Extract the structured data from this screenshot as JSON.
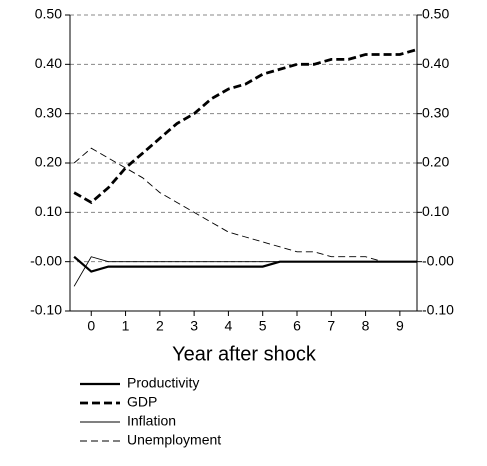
{
  "chart_data": {
    "type": "line",
    "xlabel": "Year after shock",
    "x": [
      -0.5,
      0,
      0.5,
      1,
      1.5,
      2,
      2.5,
      3,
      3.5,
      4,
      4.5,
      5,
      5.5,
      6,
      6.5,
      7,
      7.5,
      8,
      8.5,
      9,
      9.5
    ],
    "series": [
      {
        "name": "Productivity",
        "color": "#000000",
        "values": [
          0.01,
          -0.02,
          -0.01,
          -0.01,
          -0.01,
          -0.01,
          -0.01,
          -0.01,
          -0.01,
          -0.01,
          -0.01,
          -0.01,
          0.0,
          0.0,
          0.0,
          0.0,
          0.0,
          0.0,
          0.0,
          0.0,
          0.0
        ]
      },
      {
        "name": "GDP",
        "color": "#000000",
        "values": [
          0.14,
          0.12,
          0.15,
          0.19,
          0.22,
          0.25,
          0.28,
          0.3,
          0.33,
          0.35,
          0.36,
          0.38,
          0.39,
          0.4,
          0.4,
          0.41,
          0.41,
          0.42,
          0.42,
          0.42,
          0.43
        ]
      },
      {
        "name": "Inflation",
        "color": "#000000",
        "values": [
          -0.05,
          0.01,
          0.0,
          0.0,
          0.0,
          0.0,
          0.0,
          0.0,
          0.0,
          0.0,
          0.0,
          0.0,
          0.0,
          0.0,
          0.0,
          0.0,
          0.0,
          0.0,
          0.0,
          0.0,
          0.0
        ]
      },
      {
        "name": "Unemployment",
        "color": "#000000",
        "values": [
          0.2,
          0.23,
          0.21,
          0.19,
          0.17,
          0.14,
          0.12,
          0.1,
          0.08,
          0.06,
          0.05,
          0.04,
          0.03,
          0.02,
          0.02,
          0.01,
          0.01,
          0.01,
          0.0,
          0.0,
          0.0
        ]
      }
    ],
    "xlim": [
      -0.62,
      9.5
    ],
    "xticks": [
      0,
      1,
      2,
      3,
      4,
      5,
      6,
      7,
      8,
      9
    ],
    "ylim": [
      -0.1,
      0.5
    ],
    "yticks": [
      {
        "value": -0.1,
        "label": "-0.10"
      },
      {
        "value": 0,
        "label": "-0.00"
      },
      {
        "value": 0.1,
        "label": "0.10"
      },
      {
        "value": 0.2,
        "label": "0.20"
      },
      {
        "value": 0.3,
        "label": "0.30"
      },
      {
        "value": 0.4,
        "label": "0.40"
      },
      {
        "value": 0.5,
        "label": "0.50"
      }
    ],
    "y2lim": [
      -0.1,
      0.5
    ],
    "y2ticks": [
      {
        "value": -0.1,
        "label": "-0.10"
      },
      {
        "value": 0,
        "label": "-0.00"
      },
      {
        "value": 0.1,
        "label": "0.10"
      },
      {
        "value": 0.2,
        "label": "0.20"
      },
      {
        "value": 0.3,
        "label": "0.30"
      },
      {
        "value": 0.4,
        "label": "0.40"
      },
      {
        "value": 0.5,
        "label": "0.50"
      }
    ],
    "grid": true,
    "legend": "bottom"
  }
}
